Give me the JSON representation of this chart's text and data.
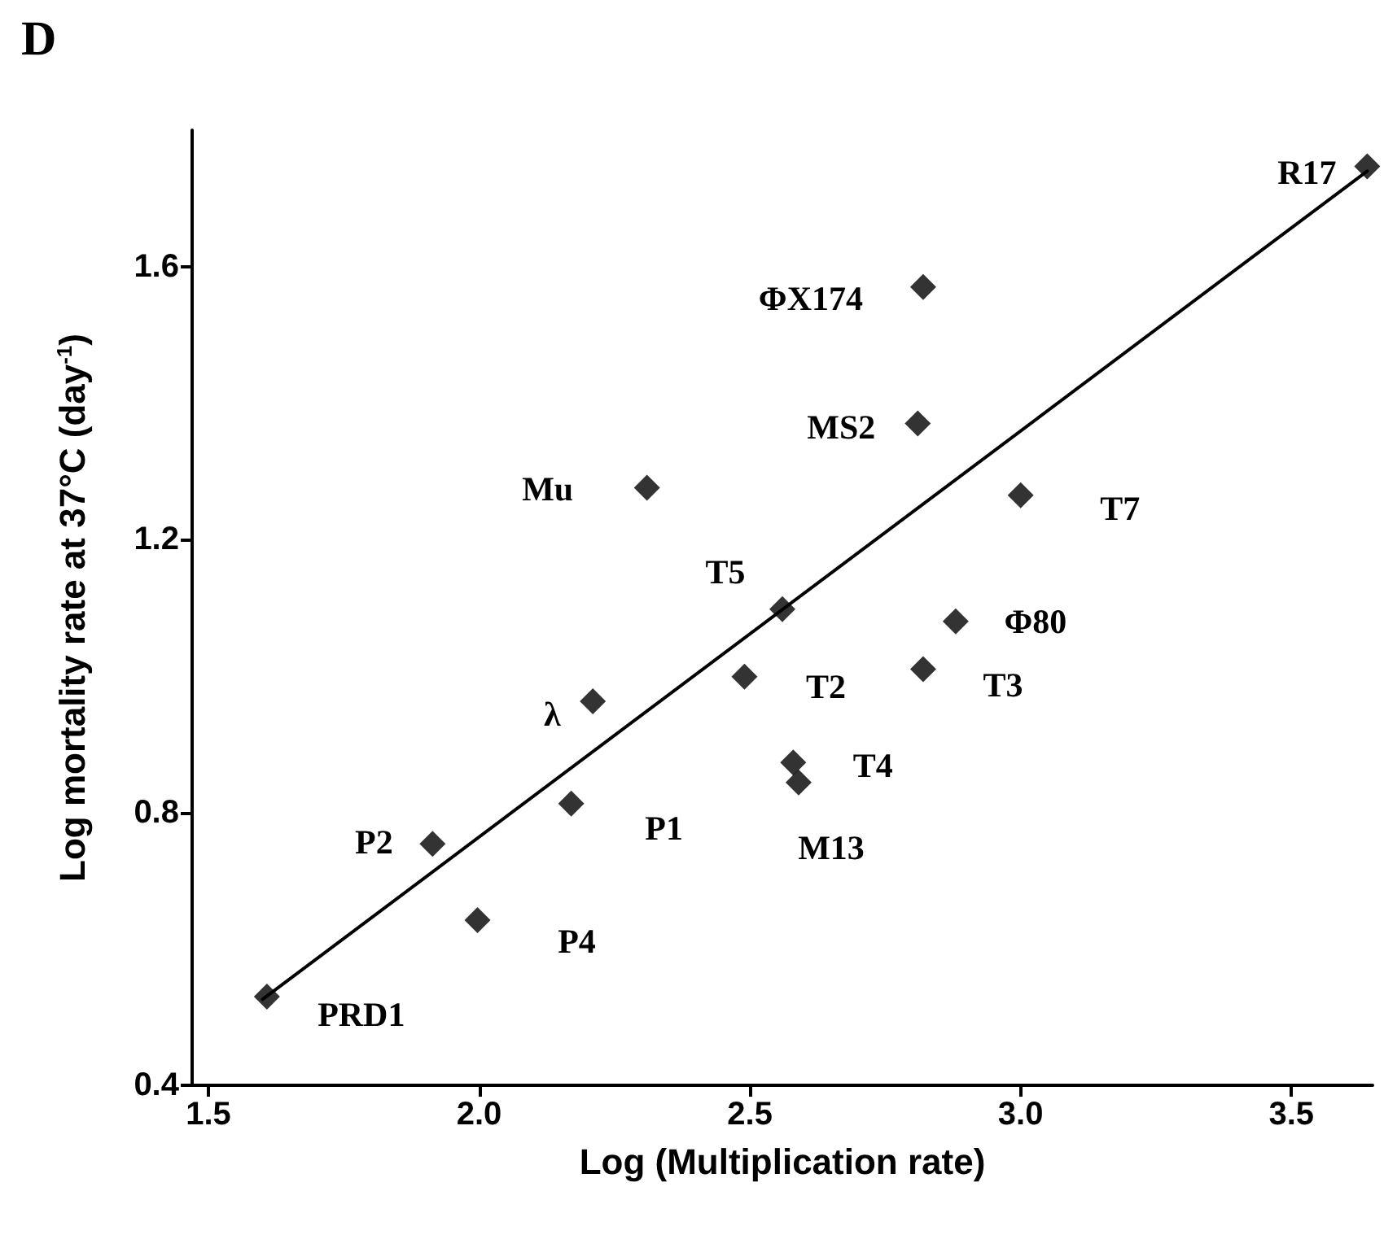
{
  "chart_data": {
    "type": "scatter",
    "title": "D",
    "xlabel": "Log (Multiplication rate)",
    "ylabel": "Log mortality rate at 37°C (day$^{-1}$)",
    "xlim": [
      1.47,
      3.65
    ],
    "ylim": [
      0.4,
      1.8
    ],
    "xticks": [
      1.5,
      {
        "value": 2,
        "label": "2.0"
      },
      2.5,
      {
        "value": 3,
        "label": "3.0"
      },
      3.5
    ],
    "yticks": [
      0.4,
      0.8,
      1.2,
      1.6
    ],
    "grid": false,
    "marker": "diamond",
    "series": [
      {
        "type": "scatter",
        "color": "#000000",
        "x": [
          1.608,
          1.914,
          1.997,
          2.17,
          2.21,
          2.31,
          2.49,
          2.56,
          2.58,
          2.59,
          2.81,
          2.82,
          2.82,
          2.88,
          3.0,
          3.64
        ],
        "values": [
          0.53,
          0.754,
          0.642,
          0.813,
          0.963,
          1.276,
          0.999,
          1.098,
          0.873,
          0.844,
          1.37,
          1.57,
          1.01,
          1.08,
          1.265,
          1.747
        ]
      },
      {
        "type": "line",
        "color": "#000000",
        "marker": "none",
        "line_style": "solid",
        "x": [
          1.6,
          3.64
        ],
        "values": [
          0.526,
          1.74
        ]
      }
    ],
    "annotations": [
      {
        "text": "R17",
        "x": 3.64,
        "y": 1.747
      },
      {
        "text": "ΦX174",
        "x": 2.82,
        "y": 1.57
      },
      {
        "text": "MS2",
        "x": 2.81,
        "y": 1.37
      },
      {
        "text": "Mu",
        "x": 2.31,
        "y": 1.276
      },
      {
        "text": "T7",
        "x": 3.0,
        "y": 1.265
      },
      {
        "text": "T5",
        "x": 2.56,
        "y": 1.098
      },
      {
        "text": "Φ80",
        "x": 2.88,
        "y": 1.08
      },
      {
        "text": "T2",
        "x": 2.49,
        "y": 0.999
      },
      {
        "text": "T3",
        "x": 2.82,
        "y": 1.01
      },
      {
        "text": "λ",
        "x": 2.21,
        "y": 0.963
      },
      {
        "text": "T4",
        "x": 2.58,
        "y": 0.873
      },
      {
        "text": "P2",
        "x": 1.914,
        "y": 0.754
      },
      {
        "text": "P1",
        "x": 2.17,
        "y": 0.813
      },
      {
        "text": "M13",
        "x": 2.59,
        "y": 0.844
      },
      {
        "text": "P4",
        "x": 1.997,
        "y": 0.642
      },
      {
        "text": "PRD1",
        "x": 1.608,
        "y": 0.53
      }
    ]
  }
}
